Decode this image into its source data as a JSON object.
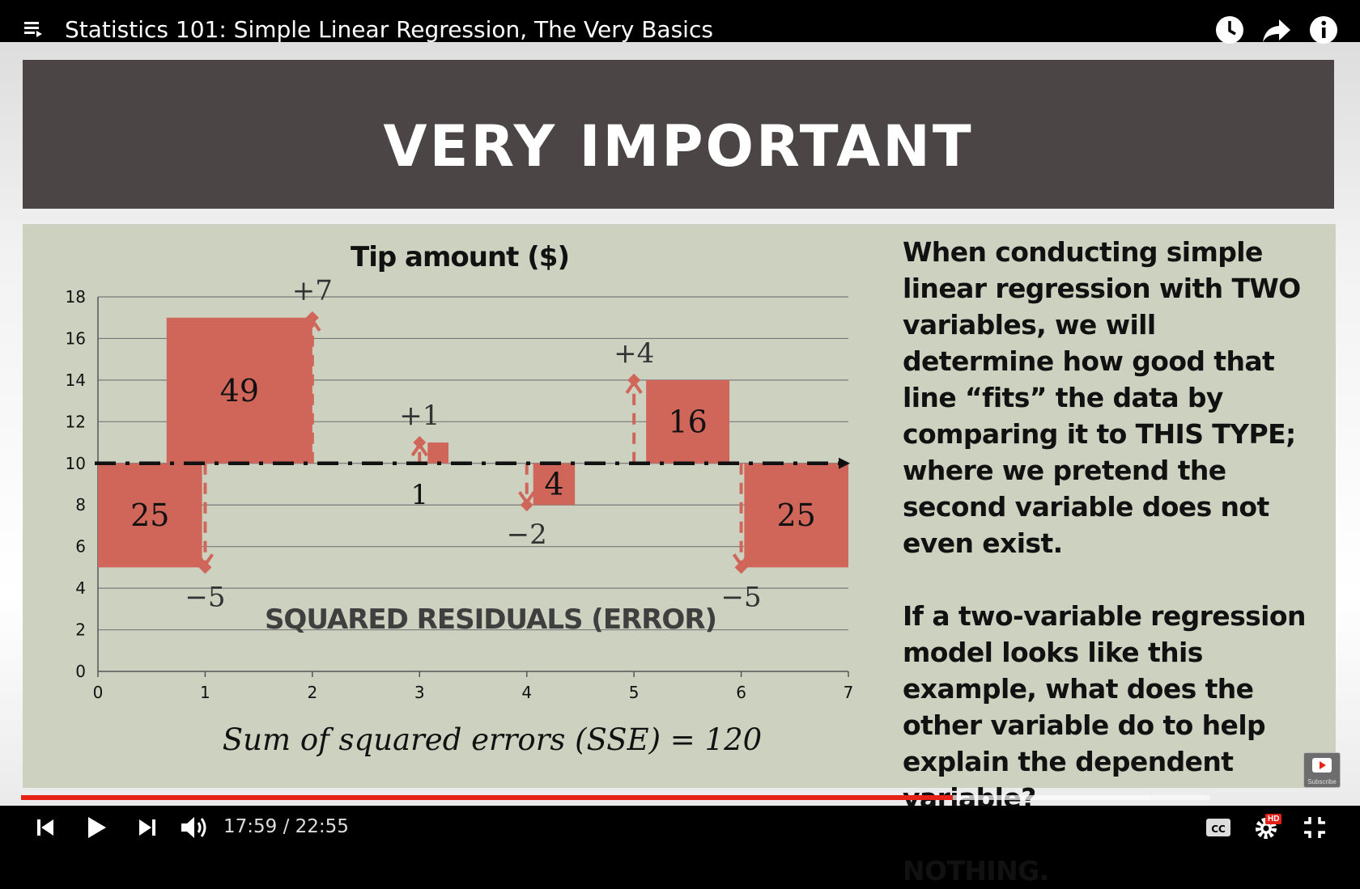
{
  "player": {
    "title": "Statistics 101: Simple Linear Regression, The Very Basics",
    "current_time": "17:59",
    "duration": "22:55",
    "time_text": "17:59 / 22:55",
    "progress_fraction": 0.784,
    "buffered_fraction": 0.95,
    "hd_badge": "HD",
    "subscribe_label": "Subscribe",
    "icons": {
      "playlist": "playlist-icon",
      "watch_later": "clock-icon",
      "share": "share-icon",
      "info": "info-icon",
      "prev": "previous-icon",
      "play": "play-icon",
      "next": "next-icon",
      "volume": "volume-icon",
      "captions": "captions-icon",
      "settings": "gear-icon",
      "exit_fullscreen": "exit-fullscreen-icon"
    },
    "accent_color": "#e62117"
  },
  "slide": {
    "banner": "VERY IMPORTANT",
    "banner_color": "#4b4546",
    "panel_color": "#cdd1bf",
    "side_paragraph_1": "When conducting simple linear regression with TWO variables, we will determine how good that line “fits” the data by comparing it to THIS TYPE; where we pretend the second variable does not even exist.",
    "side_paragraph_2": "If a two-variable regression model looks like this example, what does the other variable do to help explain the dependent variable?",
    "side_answer": "NOTHING."
  },
  "chart_data": {
    "type": "scatter",
    "title": "Tip amount ($)",
    "xlim": [
      0,
      7
    ],
    "ylim": [
      0,
      18
    ],
    "xticks": [
      0,
      1,
      2,
      3,
      4,
      5,
      6,
      7
    ],
    "yticks": [
      0,
      2,
      4,
      6,
      8,
      10,
      12,
      14,
      16,
      18
    ],
    "grid": true,
    "mean_line": 10,
    "points": [
      {
        "x": 1,
        "y": 5,
        "residual": "−5",
        "squared": "25"
      },
      {
        "x": 2,
        "y": 17,
        "residual": "+7",
        "squared": "49"
      },
      {
        "x": 3,
        "y": 11,
        "residual": "+1",
        "squared": "1"
      },
      {
        "x": 4,
        "y": 8,
        "residual": "−2",
        "squared": "4"
      },
      {
        "x": 5,
        "y": 14,
        "residual": "+4",
        "squared": "16"
      },
      {
        "x": 6,
        "y": 5,
        "residual": "−5",
        "squared": "25"
      }
    ],
    "annotation": "SQUARED RESIDUALS (ERROR)",
    "formula": "Sum of squared errors (SSE) = 120",
    "box_color": "#d0665a"
  }
}
